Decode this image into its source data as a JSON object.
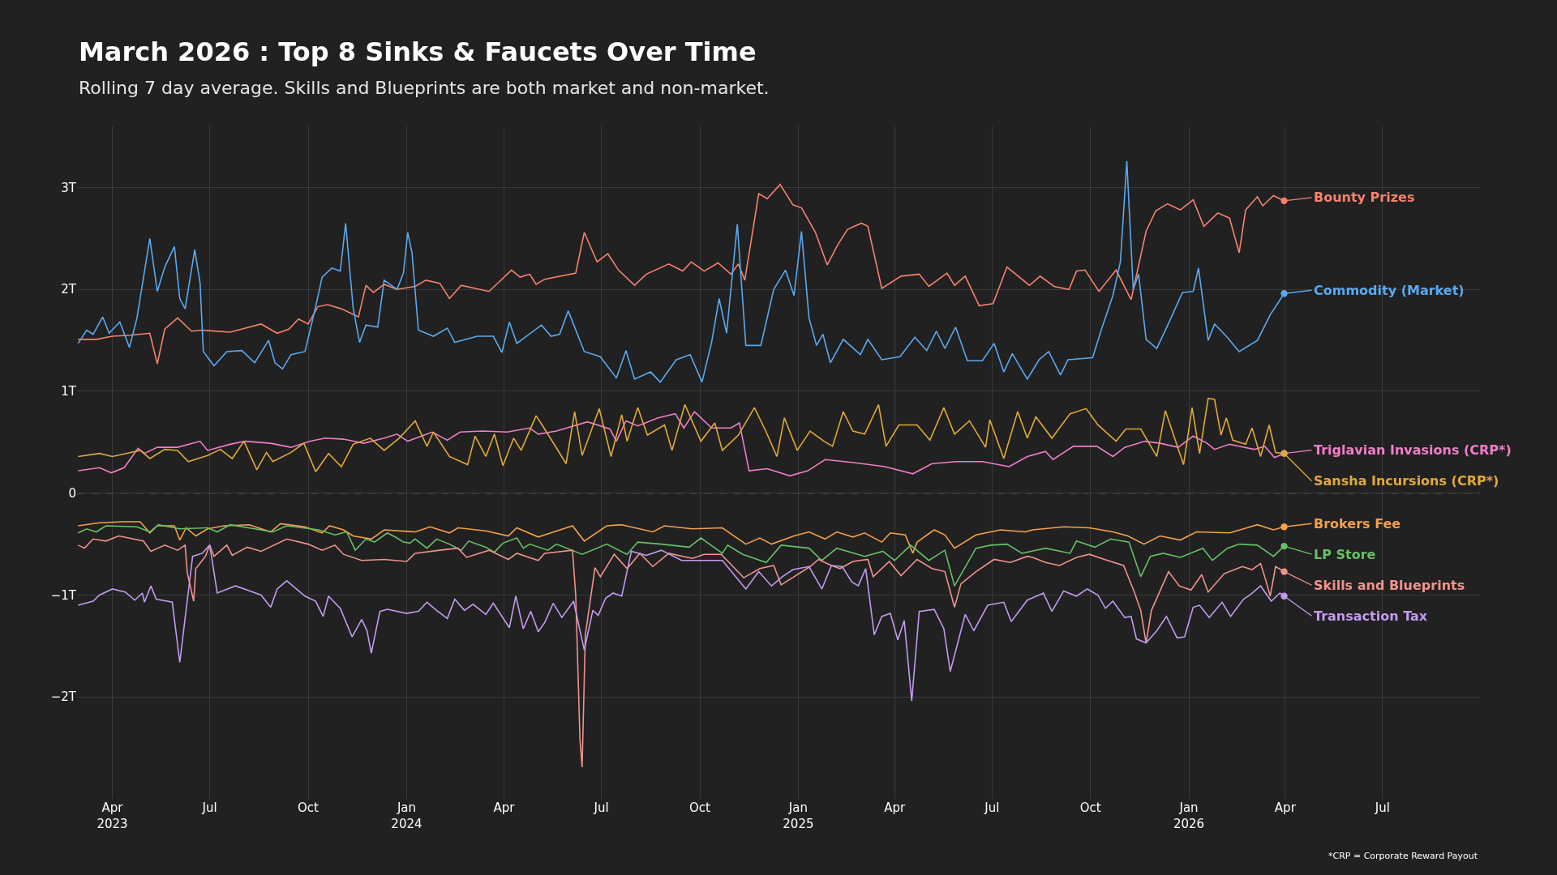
{
  "chart_data": {
    "type": "line",
    "title": "March 2026 : Top 8 Sinks & Faucets Over Time",
    "subtitle": "Rolling 7 day average. Skills and Blueprints are both market and non-market.",
    "annotations": [
      "*CRP = Corporate Reward Payout"
    ],
    "xlim": [
      "2023-02-27",
      "2026-09-30"
    ],
    "xticks": [
      {
        "value": "2023-04-01",
        "label": "Apr\n2023"
      },
      {
        "value": "2023-07-01",
        "label": "Jul"
      },
      {
        "value": "2023-10-01",
        "label": "Oct"
      },
      {
        "value": "2024-01-01",
        "label": "Jan\n2024"
      },
      {
        "value": "2024-04-01",
        "label": "Apr"
      },
      {
        "value": "2024-07-01",
        "label": "Jul"
      },
      {
        "value": "2024-10-01",
        "label": "Oct"
      },
      {
        "value": "2025-01-01",
        "label": "Jan\n2025"
      },
      {
        "value": "2025-04-01",
        "label": "Apr"
      },
      {
        "value": "2025-07-01",
        "label": "Jul"
      },
      {
        "value": "2025-10-01",
        "label": "Oct"
      },
      {
        "value": "2026-01-01",
        "label": "Jan\n2026"
      },
      {
        "value": "2026-04-01",
        "label": "Apr"
      },
      {
        "value": "2026-07-01",
        "label": "Jul"
      }
    ],
    "ylim": [
      -3.0,
      3.6
    ],
    "yticks": [
      {
        "value": -2,
        "label": "−2T"
      },
      {
        "value": -1,
        "label": "−1T"
      },
      0,
      {
        "value": 1,
        "label": "1T"
      },
      {
        "value": 2,
        "label": "2T"
      },
      {
        "value": 3,
        "label": "3T"
      }
    ],
    "grid": true,
    "legend": "right",
    "ref_lines": [
      {
        "axis": "y",
        "value": 0,
        "line_style": "dashed",
        "color": "#8a8a8a"
      }
    ],
    "series": [
      {
        "name": "Bounty Prizes",
        "color": "#f6826c",
        "x": [
          "2023-02-28",
          "2023-03-17",
          "2023-04-01",
          "2023-04-18",
          "2023-05-06",
          "2023-05-13",
          "2023-05-20",
          "2023-06-01",
          "2023-06-14",
          "2023-06-24",
          "2023-07-20",
          "2023-08-18",
          "2023-09-02",
          "2023-09-13",
          "2023-09-22",
          "2023-10-01",
          "2023-10-10",
          "2023-10-19",
          "2023-11-01",
          "2023-11-17",
          "2023-11-24",
          "2023-12-01",
          "2023-12-11",
          "2023-12-23",
          "2024-01-09",
          "2024-01-19",
          "2024-02-01",
          "2024-02-10",
          "2024-02-21",
          "2024-03-18",
          "2024-04-08",
          "2024-04-16",
          "2024-04-25",
          "2024-05-01",
          "2024-05-09",
          "2024-06-07",
          "2024-06-15",
          "2024-06-27",
          "2024-07-07",
          "2024-07-17",
          "2024-08-01",
          "2024-08-12",
          "2024-09-02",
          "2024-09-15",
          "2024-09-23",
          "2024-10-05",
          "2024-10-18",
          "2024-10-30",
          "2024-11-06",
          "2024-11-12",
          "2024-11-25",
          "2024-12-03",
          "2024-12-15",
          "2024-12-27",
          "2025-01-04",
          "2025-01-17",
          "2025-01-28",
          "2025-02-07",
          "2025-02-16",
          "2025-03-01",
          "2025-03-07",
          "2025-03-20",
          "2025-04-07",
          "2025-04-24",
          "2025-05-03",
          "2025-05-20",
          "2025-05-27",
          "2025-06-06",
          "2025-06-19",
          "2025-07-02",
          "2025-07-15",
          "2025-08-05",
          "2025-08-15",
          "2025-08-28",
          "2025-09-11",
          "2025-09-18",
          "2025-09-26",
          "2025-10-09",
          "2025-10-25",
          "2025-11-08",
          "2025-11-22",
          "2025-12-01",
          "2025-12-12",
          "2025-12-24",
          "2026-01-05",
          "2026-01-15",
          "2026-01-28",
          "2026-02-08",
          "2026-02-17",
          "2026-02-23",
          "2026-03-06",
          "2026-03-11",
          "2026-03-21",
          "2026-03-31"
        ],
        "values": [
          1.51,
          1.51,
          1.54,
          1.55,
          1.57,
          1.27,
          1.61,
          1.72,
          1.59,
          1.6,
          1.58,
          1.66,
          1.57,
          1.61,
          1.71,
          1.66,
          1.83,
          1.85,
          1.81,
          1.73,
          2.04,
          1.97,
          2.05,
          2.0,
          2.03,
          2.09,
          2.06,
          1.91,
          2.04,
          1.98,
          2.19,
          2.12,
          2.15,
          2.05,
          2.1,
          2.16,
          2.56,
          2.27,
          2.35,
          2.19,
          2.04,
          2.15,
          2.25,
          2.18,
          2.27,
          2.18,
          2.26,
          2.15,
          2.25,
          2.09,
          2.94,
          2.89,
          3.03,
          2.83,
          2.8,
          2.56,
          2.24,
          2.44,
          2.59,
          2.65,
          2.62,
          2.01,
          2.13,
          2.15,
          2.03,
          2.16,
          2.04,
          2.13,
          1.84,
          1.86,
          2.22,
          2.04,
          2.13,
          2.03,
          2.0,
          2.18,
          2.19,
          1.98,
          2.19,
          1.9,
          2.57,
          2.77,
          2.84,
          2.78,
          2.88,
          2.62,
          2.75,
          2.7,
          2.36,
          2.78,
          2.91,
          2.82,
          2.92,
          2.87
        ]
      },
      {
        "name": "Commodity (Market)",
        "color": "#5aa9f0",
        "x": [
          "2023-02-28",
          "2023-03-08",
          "2023-03-14",
          "2023-03-23",
          "2023-03-29",
          "2023-04-08",
          "2023-04-17",
          "2023-04-24",
          "2023-05-06",
          "2023-05-13",
          "2023-05-20",
          "2023-05-29",
          "2023-06-03",
          "2023-06-08",
          "2023-06-17",
          "2023-06-22",
          "2023-06-25",
          "2023-07-05",
          "2023-07-17",
          "2023-07-31",
          "2023-08-12",
          "2023-08-25",
          "2023-08-31",
          "2023-09-07",
          "2023-09-15",
          "2023-09-28",
          "2023-10-08",
          "2023-10-14",
          "2023-10-23",
          "2023-10-31",
          "2023-11-05",
          "2023-11-12",
          "2023-11-18",
          "2023-11-24",
          "2023-12-05",
          "2023-12-11",
          "2023-12-23",
          "2023-12-29",
          "2024-01-02",
          "2024-01-06",
          "2024-01-12",
          "2024-01-26",
          "2024-02-08",
          "2024-02-15",
          "2024-03-07",
          "2024-03-22",
          "2024-03-30",
          "2024-04-06",
          "2024-04-13",
          "2024-05-06",
          "2024-05-15",
          "2024-05-23",
          "2024-05-31",
          "2024-06-15",
          "2024-06-30",
          "2024-07-15",
          "2024-07-24",
          "2024-08-01",
          "2024-08-16",
          "2024-08-25",
          "2024-09-09",
          "2024-09-22",
          "2024-10-03",
          "2024-10-12",
          "2024-10-19",
          "2024-10-26",
          "2024-11-05",
          "2024-11-13",
          "2024-11-27",
          "2024-12-09",
          "2024-12-20",
          "2024-12-28",
          "2025-01-04",
          "2025-01-11",
          "2025-01-18",
          "2025-01-24",
          "2025-01-31",
          "2025-02-12",
          "2025-02-28",
          "2025-03-07",
          "2025-03-20",
          "2025-04-06",
          "2025-04-20",
          "2025-05-01",
          "2025-05-10",
          "2025-05-18",
          "2025-05-28",
          "2025-06-08",
          "2025-06-22",
          "2025-07-03",
          "2025-07-12",
          "2025-07-20",
          "2025-08-03",
          "2025-08-14",
          "2025-08-23",
          "2025-09-03",
          "2025-09-10",
          "2025-10-03",
          "2025-10-12",
          "2025-10-22",
          "2025-10-29",
          "2025-11-04",
          "2025-11-10",
          "2025-11-15",
          "2025-11-22",
          "2025-12-02",
          "2025-12-14",
          "2025-12-26",
          "2026-01-05",
          "2026-01-10",
          "2026-01-19",
          "2026-01-25",
          "2026-02-05",
          "2026-02-17",
          "2026-03-06",
          "2026-03-18",
          "2026-03-31"
        ],
        "values": [
          1.47,
          1.6,
          1.56,
          1.73,
          1.57,
          1.68,
          1.43,
          1.72,
          2.5,
          1.98,
          2.22,
          2.42,
          1.91,
          1.81,
          2.39,
          2.06,
          1.39,
          1.25,
          1.39,
          1.4,
          1.28,
          1.5,
          1.28,
          1.22,
          1.36,
          1.39,
          1.83,
          2.12,
          2.21,
          2.18,
          2.65,
          1.82,
          1.48,
          1.65,
          1.63,
          2.09,
          2.0,
          2.16,
          2.56,
          2.36,
          1.6,
          1.54,
          1.62,
          1.48,
          1.54,
          1.54,
          1.38,
          1.68,
          1.47,
          1.65,
          1.54,
          1.56,
          1.79,
          1.39,
          1.34,
          1.13,
          1.4,
          1.12,
          1.19,
          1.09,
          1.31,
          1.36,
          1.09,
          1.48,
          1.91,
          1.57,
          2.64,
          1.45,
          1.45,
          2.0,
          2.19,
          1.94,
          2.57,
          1.72,
          1.45,
          1.56,
          1.28,
          1.51,
          1.36,
          1.51,
          1.31,
          1.34,
          1.53,
          1.4,
          1.59,
          1.42,
          1.63,
          1.3,
          1.3,
          1.47,
          1.19,
          1.37,
          1.12,
          1.31,
          1.39,
          1.16,
          1.31,
          1.33,
          1.63,
          1.94,
          2.27,
          3.26,
          2.0,
          2.15,
          1.51,
          1.42,
          1.69,
          1.97,
          1.98,
          2.21,
          1.5,
          1.66,
          1.54,
          1.39,
          1.5,
          1.75,
          1.96
        ]
      },
      {
        "name": "Triglavian Invasions (CRP*)",
        "color": "#f07ec8",
        "x": [
          "2023-02-28",
          "2023-03-20",
          "2023-03-31",
          "2023-04-12",
          "2023-04-25",
          "2023-05-01",
          "2023-05-13",
          "2023-06-01",
          "2023-06-22",
          "2023-06-29",
          "2023-07-20",
          "2023-08-03",
          "2023-08-27",
          "2023-09-15",
          "2023-10-03",
          "2023-10-17",
          "2023-11-03",
          "2023-11-22",
          "2023-12-11",
          "2023-12-23",
          "2024-01-02",
          "2024-01-25",
          "2024-02-08",
          "2024-02-20",
          "2024-03-12",
          "2024-04-04",
          "2024-04-25",
          "2024-05-03",
          "2024-05-20",
          "2024-06-18",
          "2024-07-09",
          "2024-07-15",
          "2024-07-24",
          "2024-08-04",
          "2024-08-23",
          "2024-09-08",
          "2024-09-16",
          "2024-09-26",
          "2024-10-12",
          "2024-10-30",
          "2024-11-07",
          "2024-11-16",
          "2024-12-03",
          "2024-12-24",
          "2025-01-10",
          "2025-01-26",
          "2025-02-22",
          "2025-03-23",
          "2025-04-18",
          "2025-05-06",
          "2025-05-29",
          "2025-06-22",
          "2025-07-17",
          "2025-08-03",
          "2025-08-20",
          "2025-08-27",
          "2025-09-15",
          "2025-10-07",
          "2025-10-22",
          "2025-11-02",
          "2025-11-21",
          "2025-12-05",
          "2025-12-22",
          "2026-01-05",
          "2026-01-18",
          "2026-01-25",
          "2026-02-08",
          "2026-03-03",
          "2026-03-13",
          "2026-03-22",
          "2026-03-31"
        ],
        "values": [
          0.22,
          0.25,
          0.2,
          0.25,
          0.44,
          0.39,
          0.45,
          0.45,
          0.51,
          0.42,
          0.48,
          0.51,
          0.49,
          0.45,
          0.51,
          0.54,
          0.53,
          0.49,
          0.54,
          0.58,
          0.51,
          0.6,
          0.52,
          0.6,
          0.61,
          0.6,
          0.64,
          0.58,
          0.61,
          0.7,
          0.63,
          0.51,
          0.71,
          0.66,
          0.74,
          0.78,
          0.64,
          0.8,
          0.64,
          0.64,
          0.69,
          0.22,
          0.24,
          0.17,
          0.22,
          0.33,
          0.3,
          0.26,
          0.19,
          0.29,
          0.31,
          0.31,
          0.26,
          0.36,
          0.41,
          0.33,
          0.46,
          0.46,
          0.36,
          0.45,
          0.51,
          0.49,
          0.45,
          0.56,
          0.49,
          0.43,
          0.48,
          0.43,
          0.46,
          0.35,
          0.39
        ]
      },
      {
        "name": "Sansha Incursions (CRP*)",
        "color": "#e0a93a",
        "x": [
          "2023-02-28",
          "2023-03-20",
          "2023-04-01",
          "2023-04-14",
          "2023-04-27",
          "2023-05-06",
          "2023-05-20",
          "2023-06-01",
          "2023-06-11",
          "2023-06-29",
          "2023-07-11",
          "2023-07-22",
          "2023-08-02",
          "2023-08-14",
          "2023-08-23",
          "2023-08-29",
          "2023-09-15",
          "2023-09-27",
          "2023-10-08",
          "2023-10-20",
          "2023-11-01",
          "2023-11-12",
          "2023-11-28",
          "2023-12-11",
          "2023-12-25",
          "2024-01-09",
          "2024-01-20",
          "2024-01-26",
          "2024-02-10",
          "2024-02-27",
          "2024-03-05",
          "2024-03-15",
          "2024-03-23",
          "2024-03-31",
          "2024-04-10",
          "2024-04-17",
          "2024-05-01",
          "2024-05-09",
          "2024-05-29",
          "2024-06-06",
          "2024-06-13",
          "2024-06-29",
          "2024-07-10",
          "2024-07-20",
          "2024-07-25",
          "2024-08-04",
          "2024-08-13",
          "2024-08-29",
          "2024-09-05",
          "2024-09-17",
          "2024-10-02",
          "2024-10-15",
          "2024-10-22",
          "2024-11-06",
          "2024-11-21",
          "2024-12-02",
          "2024-12-12",
          "2024-12-19",
          "2024-12-31",
          "2025-01-12",
          "2025-01-25",
          "2025-02-02",
          "2025-02-12",
          "2025-02-21",
          "2025-03-04",
          "2025-03-17",
          "2025-03-24",
          "2025-04-05",
          "2025-04-22",
          "2025-05-04",
          "2025-05-17",
          "2025-05-27",
          "2025-06-10",
          "2025-06-25",
          "2025-06-29",
          "2025-07-12",
          "2025-07-25",
          "2025-08-03",
          "2025-08-11",
          "2025-08-26",
          "2025-09-12",
          "2025-09-27",
          "2025-10-08",
          "2025-10-25",
          "2025-11-03",
          "2025-11-17",
          "2025-12-02",
          "2025-12-10",
          "2025-12-27",
          "2026-01-04",
          "2026-01-11",
          "2026-01-19",
          "2026-01-25",
          "2026-01-31",
          "2026-02-05",
          "2026-02-11",
          "2026-02-23",
          "2026-03-01",
          "2026-03-09",
          "2026-03-17",
          "2026-03-23",
          "2026-03-31"
        ],
        "values": [
          0.36,
          0.39,
          0.36,
          0.39,
          0.42,
          0.34,
          0.43,
          0.42,
          0.31,
          0.37,
          0.43,
          0.34,
          0.51,
          0.23,
          0.4,
          0.31,
          0.4,
          0.49,
          0.21,
          0.39,
          0.26,
          0.48,
          0.54,
          0.42,
          0.54,
          0.71,
          0.46,
          0.6,
          0.36,
          0.28,
          0.56,
          0.36,
          0.58,
          0.27,
          0.54,
          0.42,
          0.76,
          0.63,
          0.29,
          0.8,
          0.37,
          0.83,
          0.36,
          0.77,
          0.51,
          0.84,
          0.57,
          0.67,
          0.42,
          0.87,
          0.51,
          0.69,
          0.42,
          0.57,
          0.84,
          0.6,
          0.36,
          0.74,
          0.42,
          0.61,
          0.51,
          0.46,
          0.8,
          0.61,
          0.58,
          0.87,
          0.46,
          0.67,
          0.67,
          0.52,
          0.84,
          0.58,
          0.71,
          0.45,
          0.72,
          0.34,
          0.8,
          0.54,
          0.75,
          0.54,
          0.78,
          0.83,
          0.67,
          0.51,
          0.63,
          0.63,
          0.36,
          0.81,
          0.28,
          0.84,
          0.39,
          0.93,
          0.92,
          0.57,
          0.74,
          0.52,
          0.48,
          0.64,
          0.36,
          0.67,
          0.4,
          0.39
        ]
      },
      {
        "name": "Brokers Fee",
        "color": "#f5a04a",
        "x": [
          "2023-02-28",
          "2023-03-20",
          "2023-04-10",
          "2023-04-27",
          "2023-05-06",
          "2023-05-13",
          "2023-05-29",
          "2023-06-03",
          "2023-06-09",
          "2023-06-18",
          "2023-06-29",
          "2023-07-14",
          "2023-08-07",
          "2023-08-27",
          "2023-09-05",
          "2023-09-28",
          "2023-10-14",
          "2023-10-21",
          "2023-11-03",
          "2023-11-12",
          "2023-11-29",
          "2023-12-11",
          "2024-01-09",
          "2024-01-23",
          "2024-02-10",
          "2024-02-18",
          "2024-03-15",
          "2024-04-05",
          "2024-04-13",
          "2024-05-03",
          "2024-05-09",
          "2024-06-04",
          "2024-06-15",
          "2024-07-06",
          "2024-07-20",
          "2024-08-18",
          "2024-08-29",
          "2024-09-24",
          "2024-10-22",
          "2024-11-13",
          "2024-11-26",
          "2024-12-07",
          "2024-12-28",
          "2025-01-11",
          "2025-01-26",
          "2025-02-06",
          "2025-02-21",
          "2025-03-04",
          "2025-03-20",
          "2025-03-28",
          "2025-04-11",
          "2025-04-18",
          "2025-04-22",
          "2025-05-08",
          "2025-05-18",
          "2025-05-27",
          "2025-06-16",
          "2025-07-09",
          "2025-08-01",
          "2025-08-08",
          "2025-09-06",
          "2025-09-30",
          "2025-10-22",
          "2025-11-05",
          "2025-11-20",
          "2025-12-05",
          "2025-12-24",
          "2026-01-08",
          "2026-02-08",
          "2026-03-06",
          "2026-03-21",
          "2026-03-31"
        ],
        "values": [
          -0.32,
          -0.29,
          -0.28,
          -0.28,
          -0.39,
          -0.32,
          -0.32,
          -0.46,
          -0.34,
          -0.42,
          -0.35,
          -0.32,
          -0.31,
          -0.38,
          -0.3,
          -0.33,
          -0.39,
          -0.32,
          -0.36,
          -0.42,
          -0.45,
          -0.36,
          -0.38,
          -0.33,
          -0.39,
          -0.34,
          -0.37,
          -0.42,
          -0.34,
          -0.43,
          -0.41,
          -0.32,
          -0.47,
          -0.32,
          -0.31,
          -0.38,
          -0.32,
          -0.35,
          -0.34,
          -0.5,
          -0.44,
          -0.5,
          -0.42,
          -0.38,
          -0.45,
          -0.38,
          -0.43,
          -0.39,
          -0.48,
          -0.39,
          -0.41,
          -0.59,
          -0.48,
          -0.36,
          -0.41,
          -0.54,
          -0.41,
          -0.36,
          -0.38,
          -0.36,
          -0.33,
          -0.34,
          -0.38,
          -0.42,
          -0.5,
          -0.42,
          -0.46,
          -0.38,
          -0.39,
          -0.31,
          -0.36,
          -0.33
        ]
      },
      {
        "name": "LP Store",
        "color": "#66c166",
        "x": [
          "2023-02-28",
          "2023-03-08",
          "2023-03-17",
          "2023-03-26",
          "2023-04-24",
          "2023-05-06",
          "2023-05-14",
          "2023-06-03",
          "2023-06-29",
          "2023-07-08",
          "2023-07-20",
          "2023-08-29",
          "2023-09-11",
          "2023-10-11",
          "2023-10-26",
          "2023-11-06",
          "2023-11-14",
          "2023-11-24",
          "2023-12-02",
          "2023-12-14",
          "2023-12-23",
          "2023-12-29",
          "2024-01-04",
          "2024-01-09",
          "2024-01-20",
          "2024-01-29",
          "2024-02-10",
          "2024-02-21",
          "2024-02-28",
          "2024-03-15",
          "2024-03-23",
          "2024-03-31",
          "2024-04-13",
          "2024-04-19",
          "2024-04-25",
          "2024-05-12",
          "2024-05-20",
          "2024-06-13",
          "2024-07-06",
          "2024-07-25",
          "2024-08-04",
          "2024-08-26",
          "2024-09-21",
          "2024-10-02",
          "2024-10-22",
          "2024-10-27",
          "2024-11-10",
          "2024-12-02",
          "2024-12-16",
          "2025-01-11",
          "2025-01-23",
          "2025-02-06",
          "2025-03-04",
          "2025-03-21",
          "2025-04-01",
          "2025-04-16",
          "2025-05-03",
          "2025-05-18",
          "2025-05-27",
          "2025-06-16",
          "2025-06-30",
          "2025-07-15",
          "2025-07-29",
          "2025-08-20",
          "2025-09-12",
          "2025-09-18",
          "2025-10-05",
          "2025-10-20",
          "2025-11-06",
          "2025-11-17",
          "2025-11-26",
          "2025-12-08",
          "2025-12-24",
          "2026-01-14",
          "2026-01-23",
          "2026-02-06",
          "2026-02-17",
          "2026-03-06",
          "2026-03-21",
          "2026-03-31"
        ],
        "values": [
          -0.39,
          -0.35,
          -0.38,
          -0.32,
          -0.33,
          -0.38,
          -0.31,
          -0.35,
          -0.34,
          -0.38,
          -0.31,
          -0.38,
          -0.32,
          -0.36,
          -0.41,
          -0.38,
          -0.56,
          -0.45,
          -0.48,
          -0.39,
          -0.44,
          -0.48,
          -0.49,
          -0.45,
          -0.54,
          -0.45,
          -0.5,
          -0.56,
          -0.47,
          -0.53,
          -0.58,
          -0.49,
          -0.44,
          -0.54,
          -0.5,
          -0.56,
          -0.5,
          -0.6,
          -0.5,
          -0.6,
          -0.48,
          -0.5,
          -0.53,
          -0.44,
          -0.59,
          -0.51,
          -0.6,
          -0.68,
          -0.51,
          -0.54,
          -0.66,
          -0.54,
          -0.62,
          -0.57,
          -0.66,
          -0.51,
          -0.66,
          -0.56,
          -0.91,
          -0.54,
          -0.51,
          -0.5,
          -0.59,
          -0.54,
          -0.59,
          -0.47,
          -0.53,
          -0.45,
          -0.48,
          -0.82,
          -0.62,
          -0.59,
          -0.63,
          -0.54,
          -0.66,
          -0.54,
          -0.5,
          -0.51,
          -0.62,
          -0.52
        ]
      },
      {
        "name": "Skills and Blueprints",
        "color": "#f0938c",
        "x": [
          "2023-02-28",
          "2023-03-06",
          "2023-03-14",
          "2023-03-26",
          "2023-04-07",
          "2023-04-30",
          "2023-05-07",
          "2023-05-20",
          "2023-06-01",
          "2023-06-08",
          "2023-06-10",
          "2023-06-16",
          "2023-06-18",
          "2023-06-27",
          "2023-07-01",
          "2023-07-05",
          "2023-07-17",
          "2023-07-22",
          "2023-08-05",
          "2023-08-18",
          "2023-09-11",
          "2023-10-01",
          "2023-10-14",
          "2023-10-26",
          "2023-11-03",
          "2023-11-20",
          "2023-12-11",
          "2024-01-01",
          "2024-01-09",
          "2024-02-01",
          "2024-02-18",
          "2024-02-26",
          "2024-03-18",
          "2024-04-05",
          "2024-04-13",
          "2024-05-03",
          "2024-05-09",
          "2024-06-04",
          "2024-06-07",
          "2024-06-11",
          "2024-06-13",
          "2024-06-16",
          "2024-06-25",
          "2024-06-30",
          "2024-07-13",
          "2024-07-25",
          "2024-08-06",
          "2024-08-18",
          "2024-09-02",
          "2024-09-24",
          "2024-10-05",
          "2024-10-21",
          "2024-11-11",
          "2024-11-26",
          "2024-12-09",
          "2024-12-16",
          "2024-12-28",
          "2025-01-12",
          "2025-01-20",
          "2025-02-01",
          "2025-02-09",
          "2025-02-21",
          "2025-03-07",
          "2025-03-12",
          "2025-03-27",
          "2025-04-07",
          "2025-04-22",
          "2025-05-06",
          "2025-05-18",
          "2025-05-27",
          "2025-06-02",
          "2025-06-16",
          "2025-07-03",
          "2025-07-18",
          "2025-08-03",
          "2025-08-08",
          "2025-08-20",
          "2025-09-02",
          "2025-09-18",
          "2025-09-30",
          "2025-10-17",
          "2025-11-01",
          "2025-11-11",
          "2025-11-17",
          "2025-11-22",
          "2025-11-27",
          "2025-12-13",
          "2025-12-23",
          "2026-01-03",
          "2026-01-13",
          "2026-01-19",
          "2026-02-03",
          "2026-02-20",
          "2026-03-01",
          "2026-03-09",
          "2026-03-14",
          "2026-03-18",
          "2026-03-23",
          "2026-03-31"
        ],
        "values": [
          -0.51,
          -0.54,
          -0.45,
          -0.47,
          -0.42,
          -0.47,
          -0.57,
          -0.51,
          -0.56,
          -0.51,
          -0.78,
          -1.06,
          -0.74,
          -0.62,
          -0.51,
          -0.62,
          -0.51,
          -0.61,
          -0.53,
          -0.57,
          -0.45,
          -0.5,
          -0.56,
          -0.51,
          -0.6,
          -0.66,
          -0.65,
          -0.67,
          -0.59,
          -0.56,
          -0.54,
          -0.63,
          -0.56,
          -0.65,
          -0.59,
          -0.66,
          -0.59,
          -0.56,
          -1.0,
          -2.42,
          -2.69,
          -1.39,
          -0.73,
          -0.82,
          -0.6,
          -0.74,
          -0.59,
          -0.72,
          -0.59,
          -0.64,
          -0.6,
          -0.6,
          -0.83,
          -0.74,
          -0.71,
          -0.9,
          -0.82,
          -0.72,
          -0.65,
          -0.71,
          -0.74,
          -0.67,
          -0.65,
          -0.82,
          -0.67,
          -0.81,
          -0.65,
          -0.74,
          -0.77,
          -1.12,
          -0.89,
          -0.77,
          -0.65,
          -0.68,
          -0.62,
          -0.63,
          -0.68,
          -0.71,
          -0.63,
          -0.6,
          -0.66,
          -0.71,
          -0.97,
          -1.15,
          -1.47,
          -1.15,
          -0.77,
          -0.91,
          -0.95,
          -0.8,
          -0.97,
          -0.79,
          -0.72,
          -0.75,
          -0.69,
          -0.86,
          -1.01,
          -0.72,
          -0.77
        ]
      },
      {
        "name": "Transaction Tax",
        "color": "#c39bf0",
        "x": [
          "2023-02-28",
          "2023-03-14",
          "2023-03-20",
          "2023-04-01",
          "2023-04-13",
          "2023-04-22",
          "2023-04-29",
          "2023-05-01",
          "2023-05-07",
          "2023-05-12",
          "2023-05-27",
          "2023-06-03",
          "2023-06-15",
          "2023-06-24",
          "2023-07-01",
          "2023-07-08",
          "2023-07-25",
          "2023-08-05",
          "2023-08-18",
          "2023-08-27",
          "2023-09-02",
          "2023-09-11",
          "2023-09-28",
          "2023-10-08",
          "2023-10-15",
          "2023-10-20",
          "2023-10-31",
          "2023-11-11",
          "2023-11-20",
          "2023-11-25",
          "2023-11-29",
          "2023-12-07",
          "2023-12-14",
          "2024-01-01",
          "2024-01-12",
          "2024-01-20",
          "2024-01-29",
          "2024-02-08",
          "2024-02-15",
          "2024-02-24",
          "2024-03-03",
          "2024-03-15",
          "2024-03-22",
          "2024-04-06",
          "2024-04-12",
          "2024-04-19",
          "2024-04-26",
          "2024-05-03",
          "2024-05-09",
          "2024-05-17",
          "2024-05-25",
          "2024-06-05",
          "2024-06-15",
          "2024-06-23",
          "2024-06-28",
          "2024-07-05",
          "2024-07-12",
          "2024-07-20",
          "2024-07-29",
          "2024-08-12",
          "2024-08-26",
          "2024-09-14",
          "2024-10-05",
          "2024-10-22",
          "2024-11-13",
          "2024-11-25",
          "2024-12-07",
          "2024-12-17",
          "2024-12-27",
          "2025-01-11",
          "2025-01-23",
          "2025-02-01",
          "2025-02-11",
          "2025-02-20",
          "2025-02-26",
          "2025-03-05",
          "2025-03-13",
          "2025-03-20",
          "2025-03-28",
          "2025-04-04",
          "2025-04-10",
          "2025-04-17",
          "2025-04-24",
          "2025-05-08",
          "2025-05-17",
          "2025-05-23",
          "2025-06-06",
          "2025-06-14",
          "2025-06-27",
          "2025-07-12",
          "2025-07-19",
          "2025-08-03",
          "2025-08-18",
          "2025-08-26",
          "2025-09-06",
          "2025-09-18",
          "2025-09-28",
          "2025-10-08",
          "2025-10-15",
          "2025-10-22",
          "2025-11-02",
          "2025-11-08",
          "2025-11-13",
          "2025-11-22",
          "2025-12-02",
          "2025-12-11",
          "2025-12-21",
          "2025-12-28",
          "2026-01-05",
          "2026-01-11",
          "2026-01-20",
          "2026-02-01",
          "2026-02-09",
          "2026-02-21",
          "2026-02-27",
          "2026-03-09",
          "2026-03-19",
          "2026-03-27",
          "2026-03-31"
        ],
        "values": [
          -1.1,
          -1.06,
          -1.0,
          -0.94,
          -0.97,
          -1.05,
          -0.98,
          -1.07,
          -0.91,
          -1.04,
          -1.07,
          -1.66,
          -0.62,
          -0.59,
          -0.51,
          -0.98,
          -0.91,
          -0.95,
          -1.0,
          -1.12,
          -0.94,
          -0.86,
          -1.01,
          -1.06,
          -1.21,
          -1.01,
          -1.13,
          -1.41,
          -1.24,
          -1.35,
          -1.57,
          -1.16,
          -1.14,
          -1.18,
          -1.16,
          -1.07,
          -1.15,
          -1.23,
          -1.04,
          -1.15,
          -1.09,
          -1.19,
          -1.08,
          -1.32,
          -1.01,
          -1.33,
          -1.16,
          -1.36,
          -1.27,
          -1.08,
          -1.22,
          -1.06,
          -1.54,
          -1.15,
          -1.2,
          -1.03,
          -0.98,
          -1.01,
          -0.57,
          -0.61,
          -0.56,
          -0.66,
          -0.66,
          -0.66,
          -0.94,
          -0.77,
          -0.91,
          -0.82,
          -0.75,
          -0.72,
          -0.94,
          -0.71,
          -0.72,
          -0.87,
          -0.91,
          -0.74,
          -1.39,
          -1.21,
          -1.18,
          -1.44,
          -1.25,
          -2.04,
          -1.16,
          -1.14,
          -1.33,
          -1.75,
          -1.19,
          -1.35,
          -1.1,
          -1.07,
          -1.26,
          -1.05,
          -0.98,
          -1.16,
          -0.96,
          -1.01,
          -0.94,
          -1.0,
          -1.13,
          -1.06,
          -1.22,
          -1.21,
          -1.43,
          -1.47,
          -1.35,
          -1.21,
          -1.42,
          -1.41,
          -1.12,
          -1.1,
          -1.22,
          -1.07,
          -1.21,
          -1.04,
          -1.0,
          -0.91,
          -1.06,
          -0.98,
          -1.01
        ]
      }
    ]
  }
}
